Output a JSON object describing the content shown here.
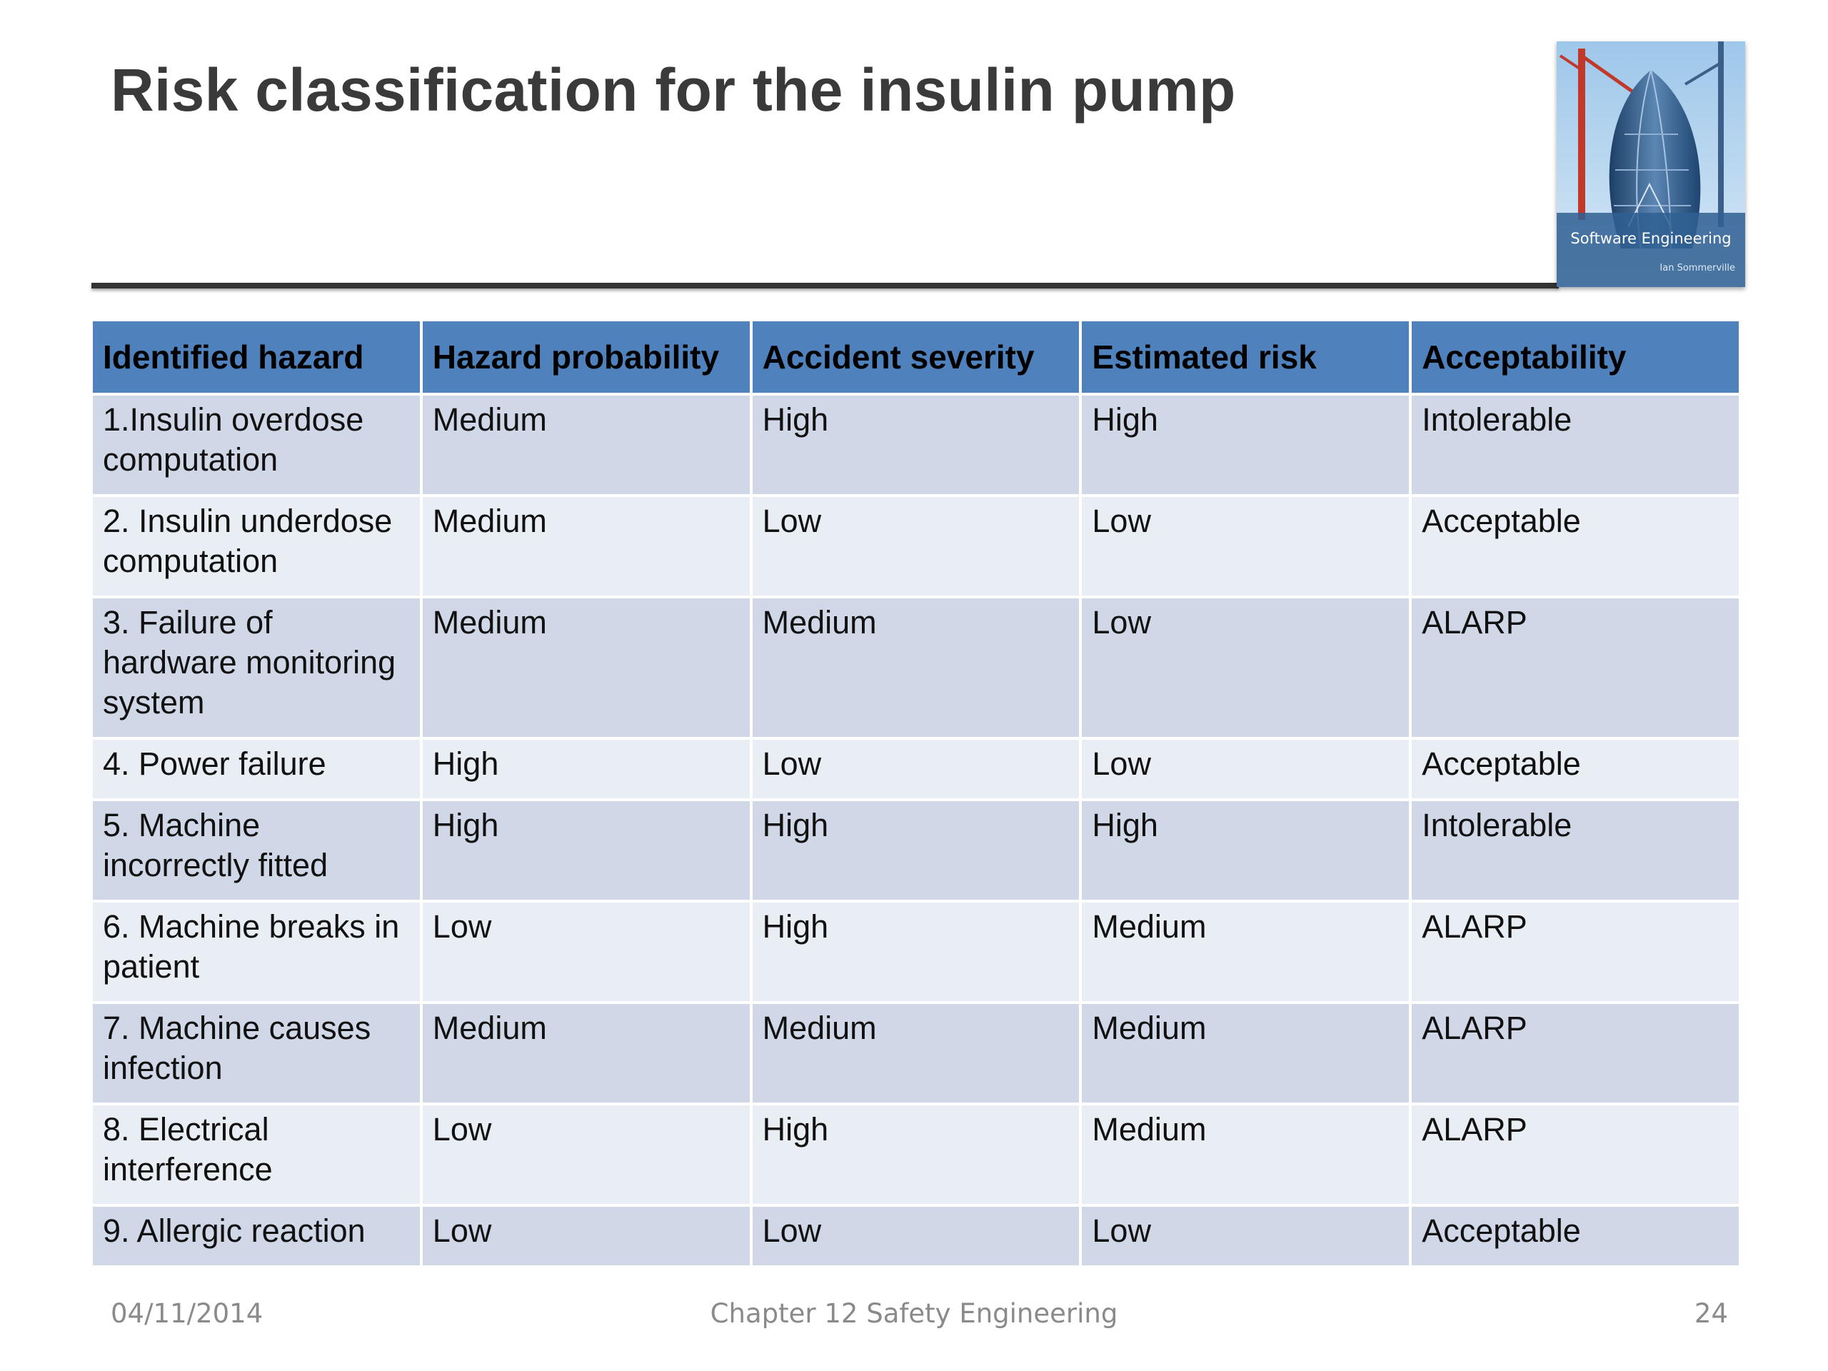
{
  "slide": {
    "title": "Risk classification for the insulin pump"
  },
  "cover": {
    "title": "Software Engineering",
    "author": "Ian Sommerville"
  },
  "table": {
    "headers": [
      "Identified hazard",
      "Hazard probability",
      "Accident severity",
      "Estimated risk",
      "Acceptability"
    ],
    "rows": [
      [
        "1.Insulin overdose computation",
        "Medium",
        "High",
        "High",
        "Intolerable"
      ],
      [
        "2. Insulin underdose computation",
        "Medium",
        "Low",
        "Low",
        "Acceptable"
      ],
      [
        "3. Failure of hardware monitoring system",
        "Medium",
        "Medium",
        "Low",
        "ALARP"
      ],
      [
        "4. Power failure",
        "High",
        "Low",
        "Low",
        "Acceptable"
      ],
      [
        "5. Machine incorrectly fitted",
        "High",
        "High",
        "High",
        "Intolerable"
      ],
      [
        "6. Machine breaks in patient",
        "Low",
        "High",
        "Medium",
        "ALARP"
      ],
      [
        "7. Machine causes infection",
        "Medium",
        "Medium",
        "Medium",
        "ALARP"
      ],
      [
        "8. Electrical interference",
        "Low",
        "High",
        "Medium",
        "ALARP"
      ],
      [
        "9. Allergic reaction",
        "Low",
        "Low",
        "Low",
        "Acceptable"
      ]
    ]
  },
  "footer": {
    "date": "04/11/2014",
    "chapter": "Chapter 12 Safety Engineering",
    "page": "24"
  },
  "colors": {
    "header_fill": "#4f81bd",
    "row_dark": "#d0d8e8",
    "row_light": "#e9edf4",
    "title_text": "#3a3a3a"
  }
}
